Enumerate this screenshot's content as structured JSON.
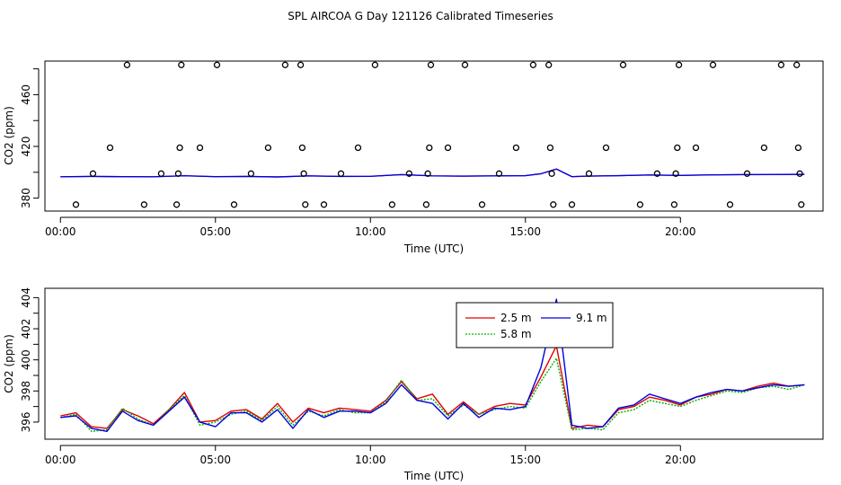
{
  "figure": {
    "title": "SPL AIRCOA G  Day 121126  Calibrated Timeseries"
  },
  "chart_data": [
    {
      "type": "scatter",
      "name": "calibration-points",
      "title": "",
      "xlabel": "Time (UTC)",
      "ylabel": "CO2 (ppm)",
      "xlim": [
        -0.5,
        24.6
      ],
      "ylim": [
        370,
        486
      ],
      "x_tick_labels": [
        {
          "x": 0,
          "label": "00:00"
        },
        {
          "x": 5,
          "label": "05:00"
        },
        {
          "x": 10,
          "label": "10:00"
        },
        {
          "x": 15,
          "label": "15:00"
        },
        {
          "x": 20,
          "label": "20:00"
        }
      ],
      "y_tick_labels": [
        {
          "y": 380,
          "label": "380"
        },
        {
          "y": 420,
          "label": "420"
        },
        {
          "y": 460,
          "label": "460"
        }
      ],
      "y_minor_ticks": [
        400,
        440,
        480
      ],
      "points": [
        {
          "x": 0.5,
          "y": 375
        },
        {
          "x": 1.05,
          "y": 399
        },
        {
          "x": 1.6,
          "y": 419
        },
        {
          "x": 2.15,
          "y": 483
        },
        {
          "x": 2.7,
          "y": 375
        },
        {
          "x": 3.25,
          "y": 399
        },
        {
          "x": 3.75,
          "y": 375
        },
        {
          "x": 3.8,
          "y": 399
        },
        {
          "x": 3.85,
          "y": 419
        },
        {
          "x": 3.9,
          "y": 483
        },
        {
          "x": 4.5,
          "y": 419
        },
        {
          "x": 5.05,
          "y": 483
        },
        {
          "x": 5.6,
          "y": 375
        },
        {
          "x": 6.15,
          "y": 399
        },
        {
          "x": 6.7,
          "y": 419
        },
        {
          "x": 7.25,
          "y": 483
        },
        {
          "x": 7.75,
          "y": 483
        },
        {
          "x": 7.8,
          "y": 419
        },
        {
          "x": 7.85,
          "y": 399
        },
        {
          "x": 7.9,
          "y": 375
        },
        {
          "x": 8.5,
          "y": 375
        },
        {
          "x": 9.05,
          "y": 399
        },
        {
          "x": 9.6,
          "y": 419
        },
        {
          "x": 10.15,
          "y": 483
        },
        {
          "x": 10.7,
          "y": 375
        },
        {
          "x": 11.25,
          "y": 399
        },
        {
          "x": 11.8,
          "y": 375
        },
        {
          "x": 11.85,
          "y": 399
        },
        {
          "x": 11.9,
          "y": 419
        },
        {
          "x": 11.95,
          "y": 483
        },
        {
          "x": 12.5,
          "y": 419
        },
        {
          "x": 13.05,
          "y": 483
        },
        {
          "x": 13.6,
          "y": 375
        },
        {
          "x": 14.15,
          "y": 399
        },
        {
          "x": 14.7,
          "y": 419
        },
        {
          "x": 15.25,
          "y": 483
        },
        {
          "x": 15.75,
          "y": 483
        },
        {
          "x": 15.8,
          "y": 419
        },
        {
          "x": 15.85,
          "y": 399
        },
        {
          "x": 15.9,
          "y": 375
        },
        {
          "x": 16.5,
          "y": 375
        },
        {
          "x": 17.05,
          "y": 399
        },
        {
          "x": 17.6,
          "y": 419
        },
        {
          "x": 18.15,
          "y": 483
        },
        {
          "x": 18.7,
          "y": 375
        },
        {
          "x": 19.25,
          "y": 399
        },
        {
          "x": 19.8,
          "y": 375
        },
        {
          "x": 19.85,
          "y": 399
        },
        {
          "x": 19.9,
          "y": 419
        },
        {
          "x": 19.95,
          "y": 483
        },
        {
          "x": 20.5,
          "y": 419
        },
        {
          "x": 21.05,
          "y": 483
        },
        {
          "x": 21.6,
          "y": 375
        },
        {
          "x": 22.15,
          "y": 399
        },
        {
          "x": 22.7,
          "y": 419
        },
        {
          "x": 23.25,
          "y": 483
        },
        {
          "x": 23.75,
          "y": 483
        },
        {
          "x": 23.8,
          "y": 419
        },
        {
          "x": 23.85,
          "y": 399
        },
        {
          "x": 23.9,
          "y": 375
        }
      ],
      "baseline": {
        "x": [
          0,
          1,
          2,
          3,
          4,
          5,
          6,
          7,
          8,
          9,
          10,
          11,
          12,
          13,
          14,
          15,
          15.5,
          16,
          16.5,
          17,
          18,
          19,
          20,
          21,
          22,
          23,
          24
        ],
        "y": [
          396.5,
          396.8,
          396.6,
          396.5,
          397.3,
          396.6,
          396.8,
          396.4,
          397.2,
          396.8,
          396.9,
          398.2,
          397.2,
          397.0,
          397.2,
          397.4,
          398.8,
          402.5,
          396.6,
          397.0,
          397.4,
          397.9,
          397.6,
          398.0,
          398.2,
          398.3,
          398.4
        ]
      }
    },
    {
      "type": "line",
      "name": "co2-timeseries",
      "title": "",
      "xlabel": "Time (UTC)",
      "ylabel": "CO2 (ppm)",
      "xlim": [
        -0.5,
        24.6
      ],
      "ylim": [
        394.9,
        404.6
      ],
      "x_tick_labels": [
        {
          "x": 0,
          "label": "00:00"
        },
        {
          "x": 5,
          "label": "05:00"
        },
        {
          "x": 10,
          "label": "10:00"
        },
        {
          "x": 15,
          "label": "15:00"
        },
        {
          "x": 20,
          "label": "20:00"
        }
      ],
      "y_tick_labels": [
        {
          "y": 396,
          "label": "396"
        },
        {
          "y": 398,
          "label": "398"
        },
        {
          "y": 400,
          "label": "400"
        },
        {
          "y": 402,
          "label": "402"
        },
        {
          "y": 404,
          "label": "404"
        }
      ],
      "y_minor_ticks": [
        397,
        399,
        401,
        403
      ],
      "legend": {
        "placement": "top-right",
        "entries": [
          {
            "label": "2.5 m",
            "color": "#e00000",
            "series": 0
          },
          {
            "label": "9.1 m",
            "color": "#0000e0",
            "series": 2
          },
          {
            "label": "5.8 m",
            "color": "#00b000",
            "series": 1
          }
        ]
      },
      "x": [
        0,
        0.5,
        1,
        1.5,
        2,
        2.5,
        3,
        3.5,
        4,
        4.5,
        5,
        5.5,
        6,
        6.5,
        7,
        7.5,
        8,
        8.5,
        9,
        9.5,
        10,
        10.5,
        11,
        11.5,
        12,
        12.5,
        13,
        13.5,
        14,
        14.5,
        15,
        15.5,
        16,
        16.5,
        17,
        17.5,
        18,
        18.5,
        19,
        19.5,
        20,
        20.5,
        21,
        21.5,
        22,
        22.5,
        23,
        23.5,
        24
      ],
      "series": [
        {
          "name": "2.5 m",
          "color": "#e00000",
          "values": [
            396.4,
            396.6,
            395.7,
            395.6,
            396.8,
            396.4,
            395.9,
            396.8,
            397.9,
            396.0,
            396.1,
            396.7,
            396.8,
            396.2,
            397.2,
            396.0,
            396.9,
            396.6,
            396.9,
            396.8,
            396.7,
            397.4,
            398.6,
            397.5,
            397.8,
            396.5,
            397.3,
            396.5,
            397.0,
            397.2,
            397.1,
            398.9,
            400.9,
            395.6,
            395.8,
            395.7,
            396.8,
            397.0,
            397.6,
            397.4,
            397.1,
            397.6,
            397.8,
            398.1,
            398.0,
            398.3,
            398.5,
            398.3,
            398.4
          ]
        },
        {
          "name": "5.8 m",
          "color": "#00b000",
          "values": [
            396.3,
            396.5,
            395.4,
            395.5,
            396.9,
            396.2,
            395.8,
            396.8,
            397.7,
            395.8,
            396.0,
            396.5,
            396.7,
            396.1,
            397.0,
            395.8,
            396.7,
            396.4,
            396.8,
            396.6,
            396.6,
            397.3,
            398.7,
            397.4,
            397.5,
            396.4,
            397.1,
            396.5,
            396.8,
            397.0,
            396.9,
            398.6,
            400.1,
            395.5,
            395.6,
            395.5,
            396.6,
            396.8,
            397.4,
            397.2,
            397.0,
            397.4,
            397.7,
            398.0,
            397.9,
            398.2,
            398.3,
            398.1,
            398.4
          ]
        },
        {
          "name": "9.1 m",
          "color": "#0000e0",
          "values": [
            396.3,
            396.4,
            395.6,
            395.4,
            396.7,
            396.1,
            395.8,
            396.7,
            397.6,
            396.0,
            395.7,
            396.6,
            396.6,
            396.0,
            396.8,
            395.6,
            396.8,
            396.3,
            396.7,
            396.7,
            396.6,
            397.2,
            398.4,
            397.4,
            397.2,
            396.2,
            397.2,
            396.3,
            396.9,
            396.8,
            397.0,
            399.5,
            403.9,
            395.8,
            395.6,
            395.7,
            396.9,
            397.1,
            397.8,
            397.5,
            397.2,
            397.6,
            397.9,
            398.1,
            398.0,
            398.2,
            398.4,
            398.3,
            398.4
          ]
        }
      ]
    }
  ]
}
